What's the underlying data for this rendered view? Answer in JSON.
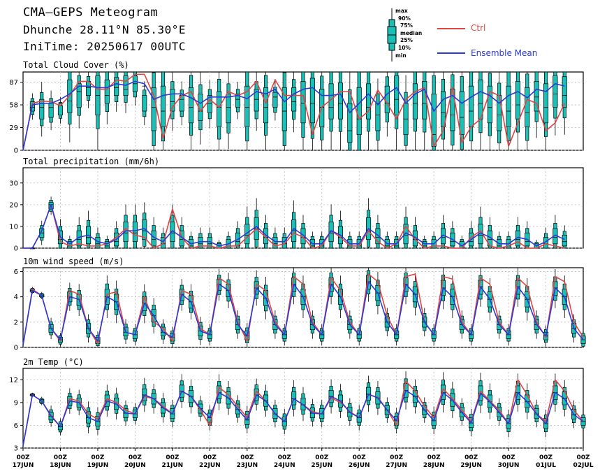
{
  "header": {
    "title": "CMA—GEPS Meteogram",
    "location": "Dhunche 28.11°N 85.30°E",
    "init_time": "IniTime: 20250617 00UTC"
  },
  "legend": {
    "box_labels": {
      "max": "max",
      "p90": "90%",
      "p75": "75%",
      "median": "median",
      "p25": "25%",
      "p10": "10%",
      "min": "min"
    },
    "ctrl_label": "Ctrl",
    "mean_label": "Ensemble Mean",
    "ctrl_color": "#e04545",
    "mean_color": "#2a3ad6",
    "box_color": "#1abfb5"
  },
  "chart_data": [
    {
      "type": "box",
      "title": "Total Cloud Cover (%)",
      "ylim": [
        0,
        100
      ],
      "yticks": [
        0,
        29,
        58,
        87
      ],
      "x_step_hours": 6,
      "ctrl": [
        0,
        60,
        63,
        62,
        57,
        70,
        88,
        88,
        78,
        78,
        90,
        88,
        97,
        97,
        70,
        15,
        55,
        70,
        75,
        50,
        65,
        55,
        75,
        70,
        75,
        88,
        60,
        90,
        70,
        70,
        70,
        20,
        55,
        65,
        75,
        75,
        40,
        50,
        77,
        60,
        40,
        65,
        75,
        80,
        5,
        25,
        80,
        10,
        30,
        40,
        75,
        70,
        5,
        35,
        65,
        60,
        25,
        35,
        60
      ],
      "mean": [
        0,
        58,
        60,
        60,
        65,
        72,
        82,
        82,
        80,
        80,
        85,
        83,
        88,
        85,
        65,
        70,
        72,
        72,
        67,
        60,
        68,
        68,
        68,
        70,
        66,
        75,
        72,
        78,
        62,
        72,
        78,
        80,
        70,
        70,
        72,
        48,
        60,
        72,
        58,
        72,
        80,
        60,
        72,
        78,
        50,
        65,
        70,
        60,
        68,
        75,
        70,
        60,
        70,
        75,
        67,
        78,
        75,
        85,
        82
      ],
      "boxes": [
        [
          58,
          62,
          65,
          60,
          57,
          90,
          85,
          88,
          95,
          90,
          93,
          95,
          95,
          70,
          80,
          82,
          78,
          70,
          80,
          72,
          70,
          75,
          72,
          72,
          82,
          78,
          80,
          74,
          80,
          80,
          88,
          92,
          78,
          85,
          86,
          60,
          80,
          85,
          60,
          82,
          95,
          60,
          85,
          88,
          72,
          75,
          78,
          75,
          82,
          90,
          82,
          70,
          82,
          88,
          80,
          88,
          85,
          95,
          94
        ],
        [
          55,
          55,
          55,
          55,
          60,
          63,
          75,
          80,
          70,
          70,
          80,
          78,
          85,
          82,
          55,
          50,
          62,
          65,
          55,
          50,
          60,
          55,
          55,
          65,
          55,
          65,
          55,
          68,
          50,
          62,
          60,
          60,
          55,
          55,
          60,
          25,
          40,
          55,
          45,
          60,
          65,
          40,
          60,
          60,
          20,
          48,
          45,
          42,
          50,
          60,
          55,
          45,
          50,
          58,
          48,
          68,
          55,
          72,
          70
        ],
        [
          50,
          50,
          40,
          42,
          45,
          48,
          55,
          70,
          45,
          60,
          70,
          70,
          75,
          50,
          25,
          30,
          50,
          50,
          35,
          38,
          48,
          30,
          35,
          55,
          30,
          50,
          35,
          55,
          25,
          50,
          35,
          35,
          30,
          40,
          40,
          10,
          20,
          40,
          25,
          48,
          45,
          20,
          40,
          40,
          5,
          30,
          25,
          20,
          30,
          40,
          35,
          25,
          30,
          40,
          30,
          50,
          35,
          55,
          55
        ]
      ],
      "box_keys": [
        "p75 per step",
        "median per step",
        "p25 per step"
      ]
    },
    {
      "type": "box",
      "title": "Total precipitation (mm/6h)",
      "ylim": [
        0,
        37
      ],
      "yticks": [
        0,
        10,
        20,
        30
      ],
      "ctrl": [
        0,
        0,
        8,
        20,
        3,
        1,
        2,
        1,
        1,
        2,
        5,
        9,
        6,
        5,
        0,
        2,
        18,
        5,
        0,
        1,
        1,
        0,
        1,
        1,
        5,
        9,
        5,
        1,
        2,
        7,
        5,
        0,
        1,
        8,
        5,
        1,
        1,
        8,
        3,
        0,
        2,
        10,
        4,
        0,
        1,
        1,
        0,
        0,
        5,
        8,
        1,
        0,
        1,
        3,
        0,
        0,
        2,
        1,
        0
      ],
      "mean": [
        0,
        0,
        8,
        20,
        5,
        2,
        5,
        6,
        3,
        2,
        4,
        8,
        8,
        9,
        5,
        3,
        8,
        5,
        2,
        3,
        3,
        1,
        2,
        4,
        7,
        10,
        6,
        3,
        3,
        9,
        6,
        2,
        2,
        8,
        6,
        2,
        2,
        9,
        6,
        2,
        2,
        7,
        5,
        2,
        2,
        6,
        4,
        1,
        4,
        7,
        5,
        2,
        2,
        5,
        4,
        1,
        3,
        6,
        4
      ],
      "boxes": [
        [
          0,
          0,
          9,
          21,
          8,
          3,
          8,
          10,
          5,
          3,
          7,
          12,
          12,
          13,
          8,
          5,
          12,
          8,
          4,
          5,
          5,
          2,
          4,
          7,
          11,
          14,
          9,
          5,
          5,
          13,
          9,
          4,
          4,
          12,
          10,
          4,
          4,
          14,
          9,
          4,
          4,
          11,
          8,
          3,
          4,
          9,
          7,
          3,
          7,
          11,
          8,
          4,
          4,
          8,
          7,
          2,
          5,
          9,
          6
        ],
        [
          0,
          0,
          7,
          20,
          4,
          1,
          4,
          5,
          2,
          1,
          3,
          7,
          7,
          8,
          4,
          2,
          7,
          4,
          1,
          2,
          2,
          0,
          1,
          3,
          6,
          9,
          5,
          2,
          2,
          8,
          5,
          1,
          1,
          7,
          5,
          1,
          1,
          8,
          5,
          1,
          1,
          6,
          4,
          1,
          1,
          5,
          3,
          0,
          3,
          6,
          4,
          1,
          1,
          4,
          3,
          0,
          2,
          5,
          3
        ],
        [
          0,
          0,
          5,
          18,
          2,
          0,
          1,
          2,
          0,
          0,
          1,
          3,
          3,
          4,
          1,
          0,
          3,
          1,
          0,
          0,
          0,
          0,
          0,
          1,
          2,
          4,
          2,
          0,
          0,
          3,
          2,
          0,
          0,
          3,
          2,
          0,
          0,
          4,
          2,
          0,
          0,
          2,
          1,
          0,
          0,
          2,
          1,
          0,
          1,
          2,
          1,
          0,
          0,
          1,
          1,
          0,
          0,
          2,
          1
        ]
      ]
    },
    {
      "type": "box",
      "title": "10m wind speed (m/s)",
      "ylim": [
        0,
        6.3
      ],
      "yticks": [
        0,
        2,
        4,
        6
      ],
      "ctrl": [
        0.2,
        4.6,
        4.1,
        1.5,
        0.5,
        4.5,
        4.2,
        1.5,
        0.3,
        4.2,
        4.4,
        1.2,
        1.0,
        4.0,
        2.0,
        1.5,
        0.5,
        4.5,
        4.2,
        1.5,
        1.0,
        5.5,
        5.0,
        2.0,
        0.5,
        5.0,
        4.5,
        2.0,
        1.0,
        5.6,
        5.0,
        2.0,
        1.0,
        5.5,
        4.5,
        2.0,
        1.0,
        5.8,
        5.2,
        2.5,
        1.0,
        5.6,
        5.8,
        2.0,
        1.0,
        5.6,
        5.4,
        2.0,
        1.0,
        5.5,
        5.0,
        2.0,
        1.0,
        5.5,
        4.8,
        2.0,
        0.8,
        5.6,
        5.2,
        2.0,
        0.8
      ],
      "mean": [
        0.2,
        4.5,
        4.1,
        1.5,
        0.6,
        4.0,
        3.8,
        1.5,
        0.5,
        4.0,
        3.6,
        1.2,
        1.0,
        3.5,
        2.5,
        1.2,
        0.8,
        4.2,
        3.6,
        1.3,
        1.0,
        5.0,
        4.5,
        1.8,
        0.9,
        4.7,
        3.9,
        1.8,
        1.0,
        5.0,
        4.0,
        1.8,
        1.0,
        5.0,
        4.0,
        1.8,
        1.0,
        5.2,
        4.3,
        2.0,
        1.0,
        5.0,
        4.2,
        2.0,
        1.0,
        4.7,
        4.0,
        1.8,
        1.0,
        4.8,
        3.8,
        1.8,
        1.0,
        4.8,
        3.8,
        1.8,
        0.9,
        4.7,
        4.0,
        1.5,
        0.6
      ],
      "boxes": [
        [
          0.2,
          4.6,
          4.2,
          1.8,
          0.8,
          4.4,
          4.2,
          1.9,
          0.8,
          4.6,
          4.2,
          1.6,
          1.3,
          4.0,
          3.0,
          1.6,
          1.1,
          4.6,
          4.1,
          1.7,
          1.3,
          5.4,
          5.0,
          2.2,
          1.3,
          5.2,
          4.5,
          2.2,
          1.3,
          5.5,
          4.6,
          2.2,
          1.3,
          5.5,
          4.6,
          2.2,
          1.3,
          5.7,
          4.9,
          2.4,
          1.3,
          5.5,
          4.8,
          2.4,
          1.3,
          5.3,
          4.6,
          2.2,
          1.3,
          5.3,
          4.4,
          2.2,
          1.3,
          5.3,
          4.4,
          2.2,
          1.2,
          5.2,
          4.6,
          1.9,
          0.9
        ],
        [
          0.2,
          4.5,
          4.1,
          1.5,
          0.6,
          4.0,
          3.8,
          1.5,
          0.5,
          4.0,
          3.6,
          1.2,
          1.0,
          3.5,
          2.5,
          1.2,
          0.8,
          4.2,
          3.6,
          1.3,
          1.0,
          5.0,
          4.5,
          1.8,
          0.9,
          4.7,
          3.9,
          1.8,
          1.0,
          5.0,
          4.0,
          1.8,
          1.0,
          5.0,
          4.0,
          1.8,
          1.0,
          5.2,
          4.3,
          2.0,
          1.0,
          5.0,
          4.2,
          2.0,
          1.0,
          4.7,
          4.0,
          1.8,
          1.0,
          4.8,
          3.8,
          1.8,
          1.0,
          4.8,
          3.8,
          1.8,
          0.9,
          4.7,
          4.0,
          1.5,
          0.6
        ],
        [
          0.2,
          4.4,
          4.0,
          1.2,
          0.4,
          3.6,
          3.3,
          1.1,
          0.3,
          3.4,
          3.0,
          0.9,
          0.7,
          2.9,
          2.0,
          0.9,
          0.5,
          3.7,
          3.1,
          0.9,
          0.7,
          4.5,
          4.0,
          1.4,
          0.6,
          4.2,
          3.3,
          1.4,
          0.7,
          4.4,
          3.4,
          1.4,
          0.7,
          4.4,
          3.4,
          1.4,
          0.7,
          4.6,
          3.7,
          1.6,
          0.7,
          4.4,
          3.6,
          1.6,
          0.7,
          4.1,
          3.4,
          1.4,
          0.7,
          4.2,
          3.2,
          1.4,
          0.7,
          4.2,
          3.2,
          1.4,
          0.6,
          4.1,
          3.4,
          1.1,
          0.3
        ]
      ]
    },
    {
      "type": "box",
      "title": "2m Temp (°C)",
      "ylim": [
        3,
        13.5
      ],
      "yticks": [
        3,
        6,
        9,
        12
      ],
      "ctrl": [
        3.3,
        10.0,
        9.2,
        7.3,
        5.8,
        9.5,
        9.2,
        7.5,
        6.8,
        9.5,
        9.0,
        8.0,
        7.5,
        9.8,
        9.5,
        8.5,
        7.5,
        10.5,
        9.8,
        8.0,
        6.0,
        11.0,
        10.0,
        8.5,
        7.0,
        10.5,
        9.2,
        7.5,
        6.5,
        9.5,
        8.7,
        7.8,
        7.5,
        9.6,
        9.0,
        7.8,
        7.0,
        10.0,
        9.7,
        8.0,
        6.0,
        11.8,
        10.5,
        8.5,
        7.0,
        10.8,
        9.5,
        8.0,
        6.5,
        10.5,
        9.2,
        8.0,
        6.2,
        12.0,
        10.0,
        7.5,
        6.5,
        12.0,
        10.5,
        8.0,
        6.5
      ],
      "mean": [
        3.3,
        10.0,
        9.2,
        7.2,
        5.8,
        9.2,
        9.0,
        7.0,
        6.5,
        9.2,
        8.8,
        7.6,
        7.5,
        10.0,
        9.5,
        8.3,
        7.5,
        10.5,
        9.8,
        8.2,
        7.0,
        10.3,
        9.6,
        8.1,
        6.7,
        10.0,
        9.2,
        7.5,
        6.5,
        9.5,
        8.7,
        7.6,
        7.5,
        9.8,
        9.2,
        7.7,
        7.0,
        10.1,
        9.6,
        8.0,
        6.6,
        10.6,
        9.8,
        8.0,
        6.6,
        10.3,
        9.3,
        7.7,
        6.3,
        10.2,
        9.1,
        7.7,
        6.2,
        10.3,
        9.1,
        7.5,
        6.2,
        10.3,
        9.5,
        7.4,
        6.5
      ],
      "boxes": [
        [
          3.3,
          10.1,
          9.4,
          7.7,
          6.2,
          9.8,
          9.6,
          7.8,
          7.2,
          10.0,
          9.6,
          8.2,
          8.0,
          10.8,
          10.2,
          9.0,
          8.2,
          11.3,
          10.6,
          8.8,
          7.6,
          11.2,
          10.4,
          8.8,
          7.4,
          10.8,
          10.0,
          8.2,
          7.1,
          10.4,
          9.6,
          8.3,
          8.2,
          10.6,
          10.0,
          8.4,
          7.6,
          11.0,
          10.4,
          8.6,
          7.2,
          11.5,
          10.6,
          8.6,
          7.3,
          11.3,
          10.2,
          8.4,
          7.0,
          11.2,
          10.0,
          8.4,
          6.9,
          11.2,
          10.0,
          8.2,
          6.9,
          11.2,
          10.4,
          8.1,
          7.0
        ],
        [
          3.3,
          10.0,
          9.2,
          7.2,
          5.8,
          9.2,
          9.0,
          7.0,
          6.5,
          9.2,
          8.8,
          7.6,
          7.5,
          10.0,
          9.5,
          8.3,
          7.5,
          10.5,
          9.8,
          8.2,
          7.0,
          10.3,
          9.6,
          8.1,
          6.7,
          10.0,
          9.2,
          7.5,
          6.5,
          9.5,
          8.7,
          7.6,
          7.5,
          9.8,
          9.2,
          7.7,
          7.0,
          10.1,
          9.6,
          8.0,
          6.6,
          10.6,
          9.8,
          8.0,
          6.6,
          10.3,
          9.3,
          7.7,
          6.3,
          10.2,
          9.1,
          7.7,
          6.2,
          10.3,
          9.1,
          7.5,
          6.2,
          10.3,
          9.5,
          7.4,
          6.5
        ],
        [
          3.3,
          9.9,
          9.0,
          6.7,
          5.4,
          8.6,
          8.4,
          6.3,
          5.9,
          8.5,
          8.1,
          7.0,
          7.0,
          9.2,
          8.8,
          7.6,
          6.9,
          9.7,
          9.0,
          7.6,
          6.4,
          9.5,
          8.8,
          7.5,
          6.1,
          9.3,
          8.5,
          6.9,
          5.9,
          8.7,
          8.0,
          7.0,
          6.9,
          9.0,
          8.4,
          7.1,
          6.4,
          9.3,
          8.8,
          7.4,
          6.0,
          9.7,
          9.0,
          7.4,
          6.0,
          9.4,
          8.5,
          7.1,
          5.7,
          9.3,
          8.3,
          7.1,
          5.6,
          9.4,
          8.3,
          6.9,
          5.6,
          9.4,
          8.7,
          6.8,
          6.0
        ]
      ]
    }
  ],
  "x_axis": {
    "labels": [
      [
        "00Z",
        "17JUN"
      ],
      [
        "00Z",
        "18JUN"
      ],
      [
        "00Z",
        "19JUN"
      ],
      [
        "00Z",
        "20JUN"
      ],
      [
        "00Z",
        "21JUN"
      ],
      [
        "00Z",
        "22JUN"
      ],
      [
        "00Z",
        "23JUN"
      ],
      [
        "00Z",
        "24JUN"
      ],
      [
        "00Z",
        "25JUN"
      ],
      [
        "00Z",
        "26JUN"
      ],
      [
        "00Z",
        "27JUN"
      ],
      [
        "00Z",
        "28JUN"
      ],
      [
        "00Z",
        "29JUN"
      ],
      [
        "00Z",
        "30JUN"
      ],
      [
        "00Z",
        "01JUL"
      ],
      [
        "00Z",
        "02JUL"
      ]
    ]
  }
}
